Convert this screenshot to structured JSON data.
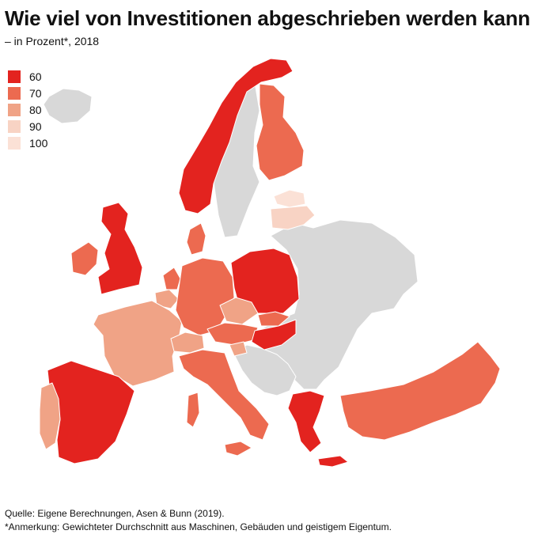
{
  "title": "Wie viel von Investitionen abgeschrieben werden kann",
  "subtitle": "– in Prozent*, 2018",
  "colors": {
    "c60": "#e3231f",
    "c70": "#ec6a50",
    "c80": "#f0a386",
    "c90": "#f8d3c4",
    "c100": "#fbe1d6",
    "nodata": "#d8d8d8"
  },
  "legend": [
    {
      "label": "60",
      "color": "#e3231f"
    },
    {
      "label": "70",
      "color": "#ec6a50"
    },
    {
      "label": "80",
      "color": "#f0a386"
    },
    {
      "label": "90",
      "color": "#f8d3c4"
    },
    {
      "label": "100",
      "color": "#fbe1d6"
    }
  ],
  "regions": {
    "norway": "60",
    "finland": "70",
    "latvia": "90",
    "estonia": "100",
    "uk": "60",
    "ireland": "70",
    "denmark": "70",
    "netherlands": "70",
    "belgium": "80",
    "france": "80",
    "germany": "70",
    "poland": "60",
    "czechia": "80",
    "austria": "70",
    "slovakia": "70",
    "hungary": "60",
    "switzerland": "80",
    "slovenia": "80",
    "italy": "70",
    "spain": "60",
    "portugal": "80",
    "greece": "60",
    "turkey": "70"
  },
  "footer": {
    "source": "Quelle: Eigene Berechnungen, Asen & Bunn (2019).",
    "note": "*Anmerkung: Gewichteter Durchschnitt aus Maschinen, Gebäuden und geistigem Eigentum."
  }
}
